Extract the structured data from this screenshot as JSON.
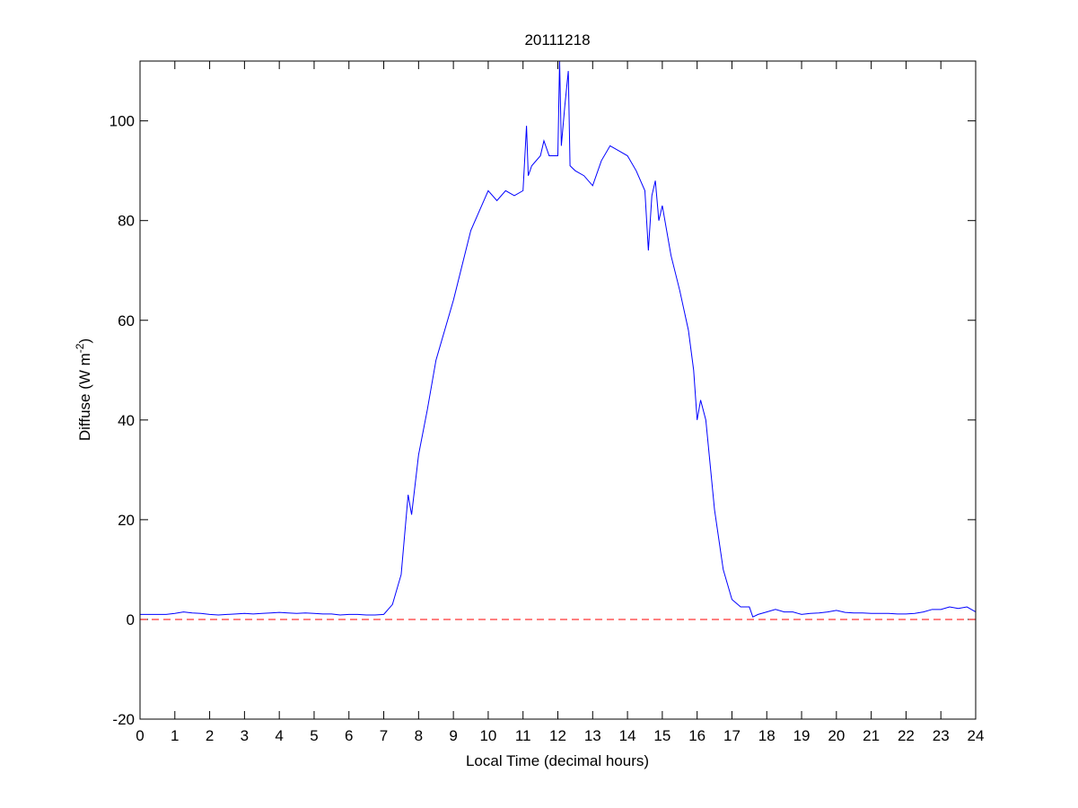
{
  "chart_data": {
    "type": "line",
    "title": "20111218",
    "xlabel": "Local Time (decimal hours)",
    "ylabel_parts": [
      "Diffuse (W m",
      "-2",
      ")"
    ],
    "xlim": [
      0,
      24
    ],
    "xticks": [
      0,
      1,
      2,
      3,
      4,
      5,
      6,
      7,
      8,
      9,
      10,
      11,
      12,
      13,
      14,
      15,
      16,
      17,
      18,
      19,
      20,
      21,
      22,
      23,
      24
    ],
    "ylim": [
      -20,
      112
    ],
    "yticks": [
      -20,
      0,
      20,
      40,
      60,
      80,
      100
    ],
    "grid": false,
    "reference_line": {
      "value": 0,
      "color": "#ff0000",
      "style": "dashed"
    },
    "series": [
      {
        "name": "Diffuse",
        "color": "#0000ff",
        "x": [
          0,
          0.25,
          0.5,
          0.75,
          1,
          1.25,
          1.5,
          1.75,
          2,
          2.25,
          2.5,
          2.75,
          3,
          3.25,
          3.5,
          3.75,
          4,
          4.25,
          4.5,
          4.75,
          5,
          5.25,
          5.5,
          5.75,
          6,
          6.25,
          6.5,
          6.75,
          7,
          7.25,
          7.5,
          7.7,
          7.8,
          8,
          8.25,
          8.5,
          8.75,
          9,
          9.25,
          9.5,
          9.75,
          10,
          10.25,
          10.5,
          10.75,
          11,
          11.1,
          11.15,
          11.25,
          11.5,
          11.6,
          11.75,
          12,
          12.05,
          12.1,
          12.2,
          12.3,
          12.35,
          12.5,
          12.75,
          13,
          13.25,
          13.5,
          13.75,
          14,
          14.25,
          14.5,
          14.6,
          14.7,
          14.8,
          14.9,
          15,
          15.25,
          15.5,
          15.75,
          15.9,
          16,
          16.1,
          16.25,
          16.5,
          16.75,
          17,
          17.25,
          17.5,
          17.6,
          17.75,
          18,
          18.25,
          18.5,
          18.75,
          19,
          19.25,
          19.5,
          19.75,
          20,
          20.25,
          20.5,
          20.75,
          21,
          21.25,
          21.5,
          21.75,
          22,
          22.25,
          22.5,
          22.75,
          23,
          23.25,
          23.5,
          23.75,
          24
        ],
        "values": [
          1,
          1,
          1,
          1,
          1.2,
          1.5,
          1.3,
          1.2,
          1,
          0.9,
          1,
          1.1,
          1.2,
          1.1,
          1.2,
          1.3,
          1.4,
          1.3,
          1.2,
          1.3,
          1.2,
          1.1,
          1.1,
          0.9,
          1,
          1,
          0.9,
          0.9,
          1,
          3,
          9,
          25,
          21,
          33,
          42,
          52,
          58,
          64,
          71,
          78,
          82,
          86,
          84,
          86,
          85,
          86,
          99,
          89,
          91,
          93,
          96,
          93,
          93,
          112,
          95,
          103,
          110,
          91,
          90,
          89,
          87,
          92,
          95,
          94,
          93,
          90,
          86,
          74,
          85,
          88,
          80,
          83,
          73,
          66,
          58,
          50,
          40,
          44,
          40,
          22,
          10,
          4,
          2.5,
          2.5,
          0.5,
          1,
          1.5,
          2,
          1.5,
          1.5,
          1,
          1.2,
          1.3,
          1.5,
          1.8,
          1.4,
          1.3,
          1.3,
          1.2,
          1.2,
          1.2,
          1.1,
          1.1,
          1.2,
          1.5,
          2,
          2,
          2.5,
          2.2,
          2.5,
          1.5
        ]
      }
    ]
  }
}
